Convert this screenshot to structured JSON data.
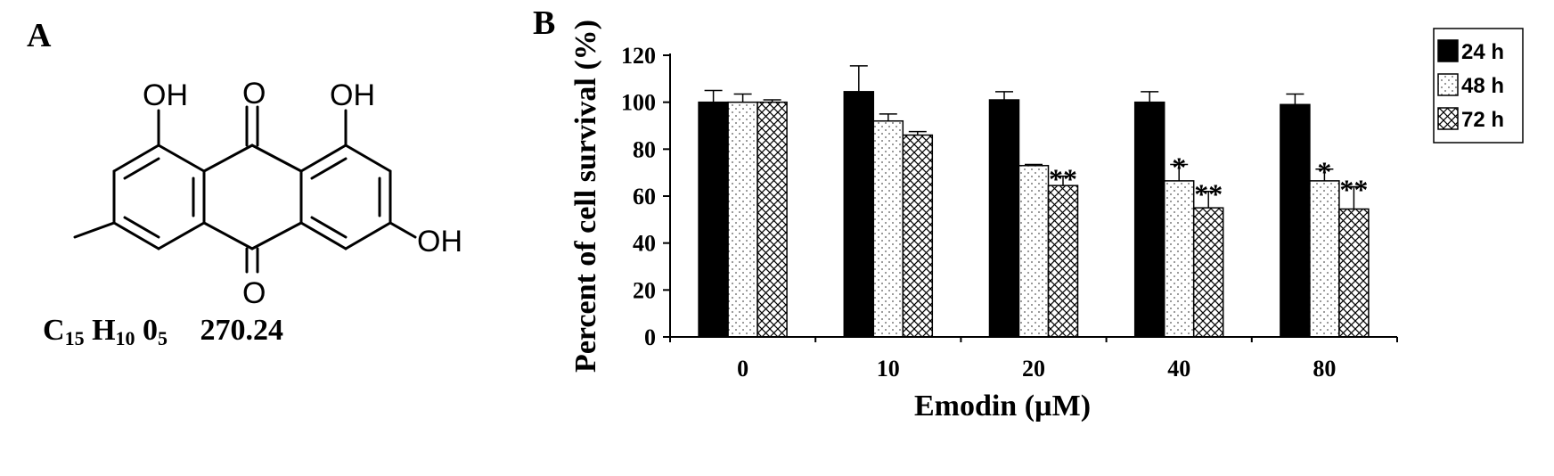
{
  "panels": {
    "a_label": "A",
    "b_label": "B"
  },
  "molecule": {
    "atom_labels": [
      "OH",
      "O",
      "OH",
      "OH",
      "O"
    ],
    "formula": {
      "c": "C",
      "c_sub": "15",
      "h": "H",
      "h_sub": "10",
      "o": "0",
      "o_sub": "5",
      "mw": "270.24"
    }
  },
  "chart_data": {
    "type": "bar",
    "title": "",
    "xlabel": "Emodin (µM)",
    "ylabel": "Percent of cell survival (%)",
    "ylim": [
      0,
      120
    ],
    "yticks": [
      0,
      20,
      40,
      60,
      80,
      100,
      120
    ],
    "categories": [
      "0",
      "10",
      "20",
      "40",
      "80"
    ],
    "series": [
      {
        "name": "24 h",
        "fill": "solid",
        "color": "#000000",
        "values": [
          100,
          104.5,
          101,
          100,
          99
        ],
        "errors": [
          5,
          11,
          3.5,
          4.5,
          4.5
        ],
        "significance": [
          "",
          "",
          "",
          "",
          ""
        ]
      },
      {
        "name": "48 h",
        "fill": "dotted",
        "color": "#000000",
        "values": [
          100,
          92,
          73,
          66.5,
          66.5
        ],
        "errors": [
          3.5,
          3,
          0.5,
          7,
          5
        ],
        "significance": [
          "",
          "",
          "",
          "*",
          "*"
        ]
      },
      {
        "name": "72 h",
        "fill": "crosshatch",
        "color": "#000000",
        "values": [
          100,
          86,
          64.5,
          55,
          54.5
        ],
        "errors": [
          1,
          1.5,
          4,
          7,
          9.5
        ],
        "significance": [
          "",
          "",
          "**",
          "**",
          "**"
        ]
      }
    ],
    "legend": "top-right",
    "grid": false
  }
}
